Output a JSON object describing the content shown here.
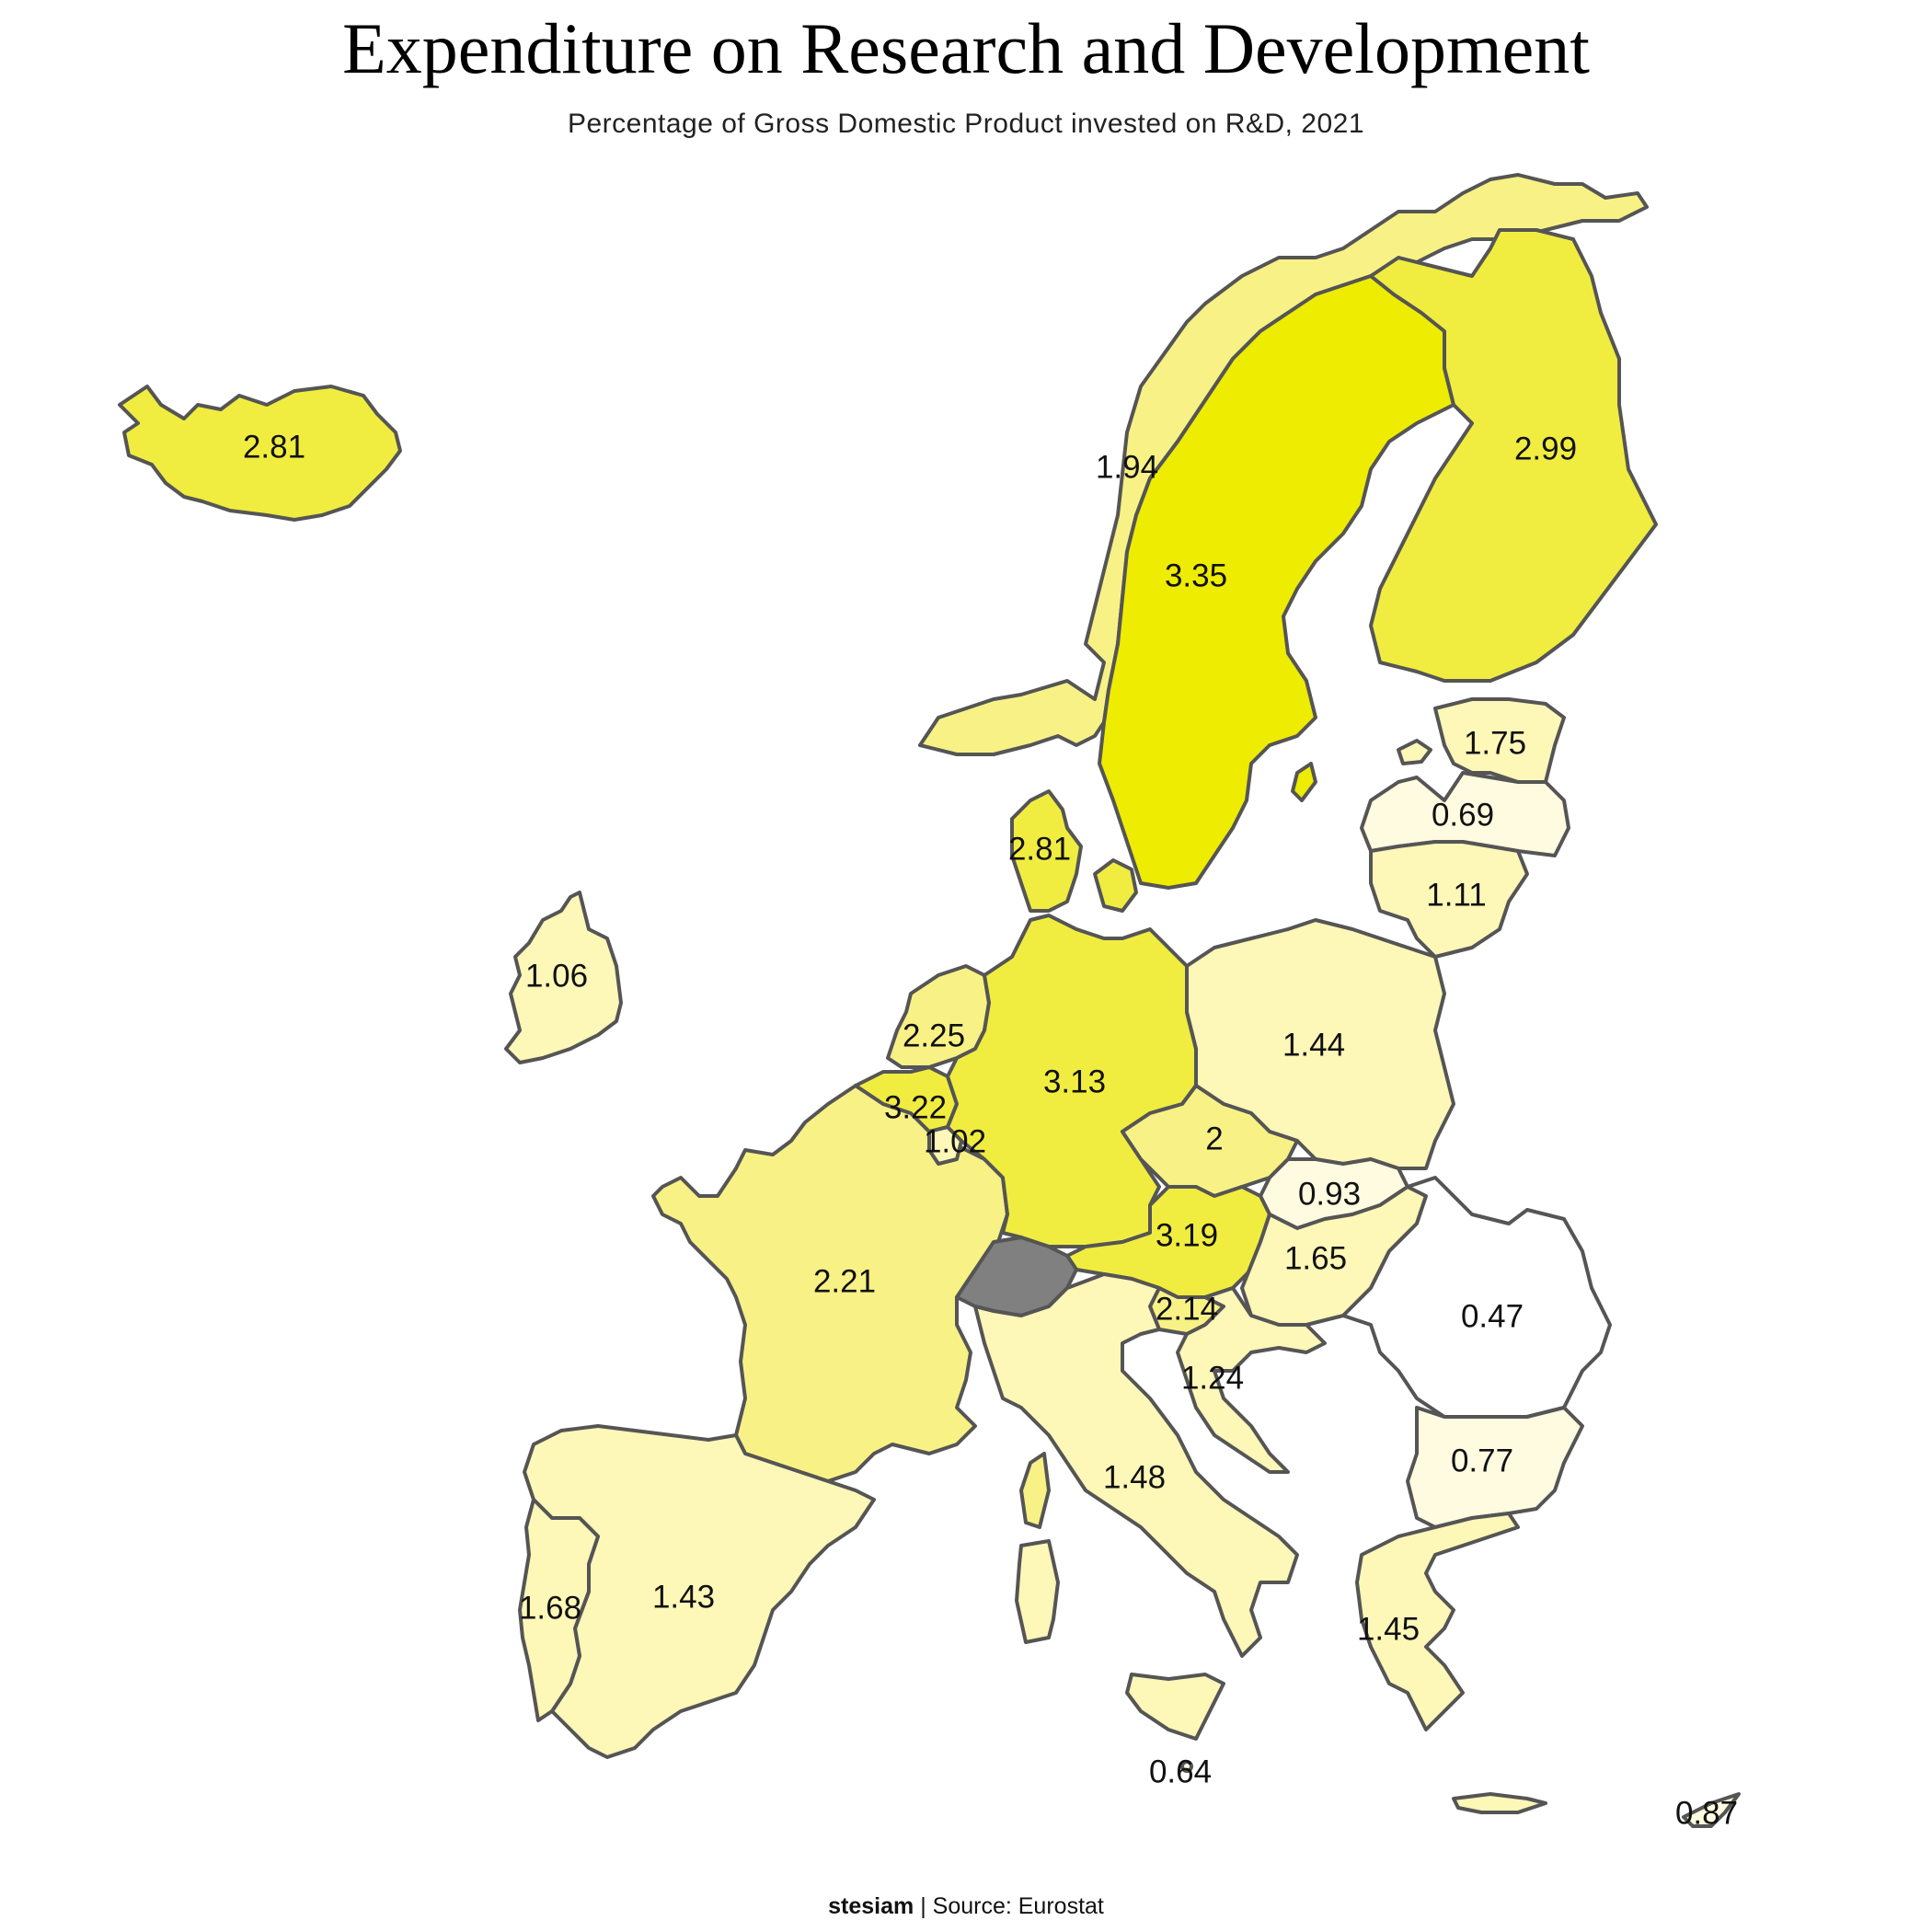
{
  "title": "Expenditure on Research and Development",
  "subtitle": "Percentage of Gross Domestic Product invested on R&D, 2021",
  "footer": {
    "author": "stesiam",
    "separator": "|",
    "source": "Source: Eurostat"
  },
  "colors": {
    "no_data": "#808080",
    "border": "#555555",
    "scale": [
      "#ffffff",
      "#fffbe0",
      "#fdf7b8",
      "#f8f286",
      "#f0ed40",
      "#eeec00"
    ]
  },
  "map_data": {
    "type": "choropleth",
    "metric_unit": "% of GDP",
    "regions": [
      {
        "country": "Iceland",
        "value": "2.81"
      },
      {
        "country": "Norway",
        "value": "1.94"
      },
      {
        "country": "Sweden",
        "value": "3.35"
      },
      {
        "country": "Finland",
        "value": "2.99"
      },
      {
        "country": "Estonia",
        "value": "1.75"
      },
      {
        "country": "Latvia",
        "value": "0.69"
      },
      {
        "country": "Lithuania",
        "value": "1.11"
      },
      {
        "country": "Denmark",
        "value": "2.81"
      },
      {
        "country": "Ireland",
        "value": "1.06"
      },
      {
        "country": "Netherlands",
        "value": "2.25"
      },
      {
        "country": "Belgium",
        "value": "3.22"
      },
      {
        "country": "Luxembourg",
        "value": "1.02"
      },
      {
        "country": "Germany",
        "value": "3.13"
      },
      {
        "country": "Poland",
        "value": "1.44"
      },
      {
        "country": "Czechia",
        "value": "2"
      },
      {
        "country": "Slovakia",
        "value": "0.93"
      },
      {
        "country": "Austria",
        "value": "3.19"
      },
      {
        "country": "Hungary",
        "value": "1.65"
      },
      {
        "country": "Romania",
        "value": "0.47"
      },
      {
        "country": "Slovenia",
        "value": "2.14"
      },
      {
        "country": "Croatia",
        "value": "1.24"
      },
      {
        "country": "Bulgaria",
        "value": "0.77"
      },
      {
        "country": "France",
        "value": "2.21"
      },
      {
        "country": "Italy",
        "value": "1.48"
      },
      {
        "country": "Spain",
        "value": "1.43"
      },
      {
        "country": "Portugal",
        "value": "1.68"
      },
      {
        "country": "Greece",
        "value": "1.45"
      },
      {
        "country": "Malta",
        "value": "0.64"
      },
      {
        "country": "Cyprus",
        "value": "0.87"
      },
      {
        "country": "Switzerland",
        "value": ""
      }
    ]
  }
}
